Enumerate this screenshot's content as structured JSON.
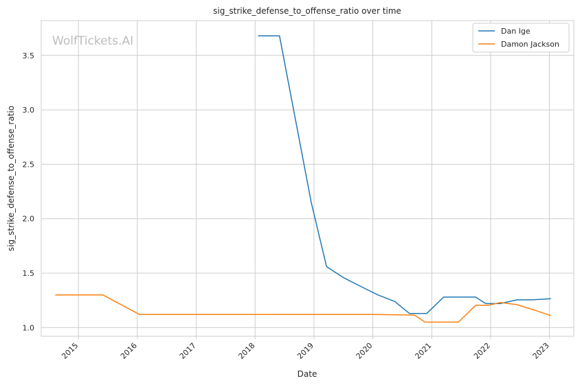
{
  "chart_data": {
    "type": "line",
    "title": "sig_strike_defense_to_offense_ratio over time",
    "xlabel": "Date",
    "ylabel": "sig_strike_defense_to_offense_ratio",
    "watermark": "WolfTickets.AI",
    "xlim": [
      "2014-05-15",
      "2023-06-01"
    ],
    "ylim": [
      0.92,
      3.82
    ],
    "x_ticks": [
      "2015-01-01",
      "2016-01-01",
      "2017-01-01",
      "2018-01-01",
      "2019-01-01",
      "2020-01-01",
      "2021-01-01",
      "2022-01-01",
      "2023-01-01"
    ],
    "x_tick_labels": [
      "2015",
      "2016",
      "2017",
      "2018",
      "2019",
      "2020",
      "2021",
      "2022",
      "2023"
    ],
    "y_ticks": [
      1.0,
      1.5,
      2.0,
      2.5,
      3.0,
      3.5
    ],
    "y_tick_labels": [
      "1.0",
      "1.5",
      "2.0",
      "2.5",
      "3.0",
      "3.5"
    ],
    "grid": true,
    "legend_position": "top-right",
    "series": [
      {
        "name": "Dan Ige",
        "color": "#1f77b4",
        "points": [
          [
            "2018-01-20",
            3.68
          ],
          [
            "2018-06-01",
            3.68
          ],
          [
            "2018-12-15",
            2.15
          ],
          [
            "2019-03-20",
            1.56
          ],
          [
            "2019-07-01",
            1.46
          ],
          [
            "2019-10-15",
            1.38
          ],
          [
            "2020-02-01",
            1.3
          ],
          [
            "2020-05-15",
            1.24
          ],
          [
            "2020-08-15",
            1.13
          ],
          [
            "2020-12-01",
            1.13
          ],
          [
            "2021-03-15",
            1.28
          ],
          [
            "2021-06-15",
            1.28
          ],
          [
            "2021-09-30",
            1.28
          ],
          [
            "2021-12-01",
            1.22
          ],
          [
            "2022-03-01",
            1.22
          ],
          [
            "2022-06-15",
            1.255
          ],
          [
            "2022-09-15",
            1.255
          ],
          [
            "2023-01-10",
            1.265
          ]
        ]
      },
      {
        "name": "Damon Jackson",
        "color": "#ff7f0e",
        "points": [
          [
            "2014-08-10",
            1.3
          ],
          [
            "2015-01-15",
            1.3
          ],
          [
            "2015-06-01",
            1.3
          ],
          [
            "2016-01-15",
            1.12
          ],
          [
            "2017-01-01",
            1.12
          ],
          [
            "2018-01-01",
            1.12
          ],
          [
            "2019-01-01",
            1.12
          ],
          [
            "2020-01-01",
            1.12
          ],
          [
            "2020-09-15",
            1.115
          ],
          [
            "2020-11-20",
            1.05
          ],
          [
            "2021-03-15",
            1.05
          ],
          [
            "2021-06-15",
            1.05
          ],
          [
            "2021-09-30",
            1.205
          ],
          [
            "2021-12-20",
            1.205
          ],
          [
            "2022-03-01",
            1.23
          ],
          [
            "2022-06-15",
            1.21
          ],
          [
            "2022-10-01",
            1.16
          ],
          [
            "2023-01-10",
            1.11
          ]
        ]
      }
    ]
  }
}
